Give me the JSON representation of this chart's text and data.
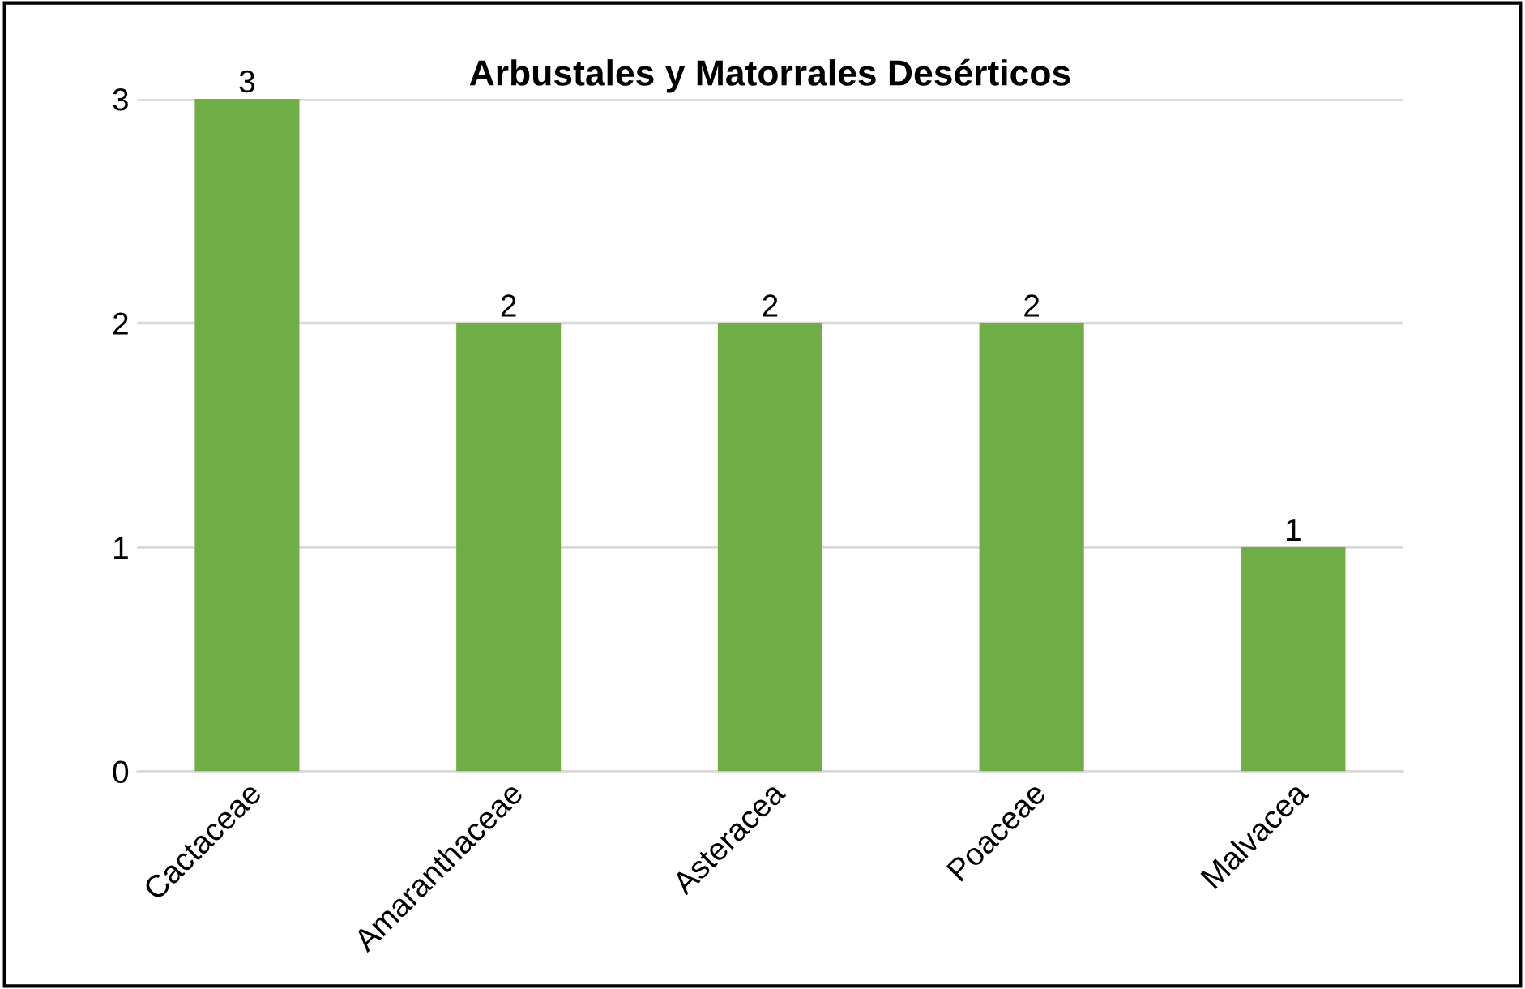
{
  "chart_data": {
    "type": "bar",
    "title": "Arbustales y Matorrales Desérticos",
    "categories": [
      "Cactaceae",
      "Amaranthaceae",
      "Asteracea",
      "Poaceae",
      "Malvacea"
    ],
    "values": [
      3,
      2,
      2,
      2,
      1
    ],
    "color": "#70ad47",
    "ylim": [
      0,
      3
    ],
    "yticks": [
      0,
      1,
      2,
      3
    ],
    "grid": "y",
    "data_labels": true
  }
}
